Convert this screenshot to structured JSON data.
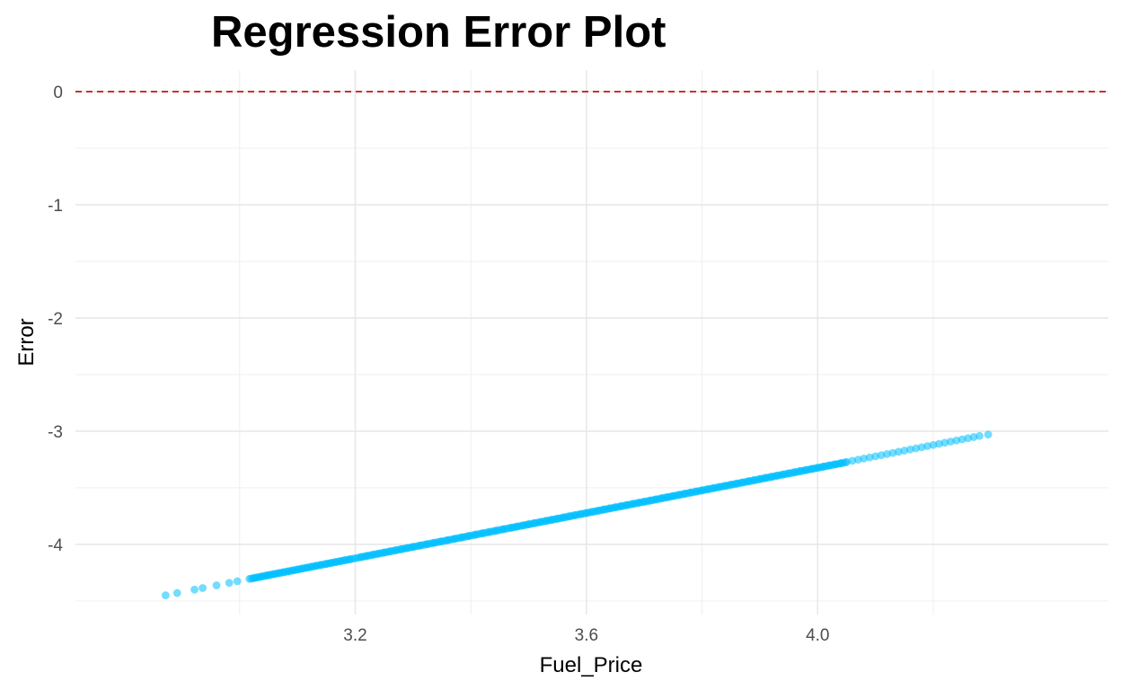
{
  "chart_data": {
    "type": "scatter",
    "title": "Regression Error Plot",
    "xlabel": "Fuel_Price",
    "ylabel": "Error",
    "xlim": [
      2.716,
      4.503
    ],
    "ylim": [
      -4.62,
      0.19
    ],
    "x_ticks": [
      3.2,
      3.6,
      4.0
    ],
    "x_tick_labels": [
      "3.2",
      "3.6",
      "4.0"
    ],
    "y_ticks": [
      0,
      -1,
      -2,
      -3,
      -4
    ],
    "y_tick_labels": [
      "0",
      "-1",
      "-2",
      "-3",
      "-4"
    ],
    "grid": true,
    "reference_line": {
      "y": 0,
      "style": "dashed",
      "color": "#cc2222"
    },
    "point_color": "#00bfff",
    "point_opacity": 0.55,
    "trend": {
      "x_start": 2.872,
      "y_start": -4.45,
      "x_end": 4.295,
      "y_end": -3.03
    },
    "x": [
      2.872,
      2.892,
      2.922,
      2.936,
      2.96,
      2.982,
      2.996,
      3.017,
      3.024,
      3.03,
      3.038,
      3.046,
      3.052,
      3.06,
      3.068,
      3.076,
      3.084,
      3.092,
      3.1,
      3.108,
      3.116,
      3.124,
      3.132,
      3.14,
      3.15,
      3.158,
      3.166,
      3.174,
      3.182,
      3.19,
      3.21,
      3.22,
      3.23,
      3.24,
      3.25,
      3.26,
      3.27,
      3.28,
      3.29,
      3.3,
      3.312,
      3.324,
      3.336,
      3.348,
      3.36,
      3.372,
      3.384,
      3.396,
      3.408,
      3.42,
      3.432,
      3.444,
      3.456,
      3.47,
      3.48,
      3.49,
      3.5,
      3.51,
      3.52,
      3.53,
      3.54,
      3.55,
      3.56,
      3.57,
      3.58,
      3.59,
      3.6,
      3.61,
      3.62,
      3.63,
      3.64,
      3.65,
      3.66,
      3.67,
      3.68,
      3.69,
      3.7,
      3.71,
      3.72,
      3.73,
      3.74,
      3.75,
      3.76,
      3.77,
      3.78,
      3.79,
      3.8,
      3.81,
      3.82,
      3.83,
      3.84,
      3.85,
      3.86,
      3.87,
      3.88,
      3.89,
      3.9,
      3.91,
      3.92,
      3.93,
      3.94,
      3.95,
      3.96,
      3.97,
      3.98,
      3.99,
      4.0,
      4.01,
      4.02,
      4.03,
      4.04,
      4.05,
      4.06,
      4.07,
      4.08,
      4.09,
      4.1,
      4.11,
      4.12,
      4.13,
      4.14,
      4.15,
      4.16,
      4.17,
      4.18,
      4.19,
      4.2,
      4.21,
      4.22,
      4.23,
      4.24,
      4.25,
      4.26,
      4.27,
      4.28,
      4.295
    ],
    "y": [
      -4.45,
      -4.43,
      -4.4,
      -4.386,
      -4.362,
      -4.34,
      -4.326,
      -4.305,
      -4.298,
      -4.292,
      -4.284,
      -4.276,
      -4.27,
      -4.262,
      -4.254,
      -4.246,
      -4.238,
      -4.23,
      -4.222,
      -4.214,
      -4.206,
      -4.198,
      -4.19,
      -4.182,
      -4.172,
      -4.164,
      -4.156,
      -4.148,
      -4.14,
      -4.132,
      -4.112,
      -4.102,
      -4.092,
      -4.082,
      -4.072,
      -4.062,
      -4.052,
      -4.042,
      -4.032,
      -4.022,
      -4.01,
      -3.998,
      -3.986,
      -3.974,
      -3.962,
      -3.95,
      -3.938,
      -3.926,
      -3.914,
      -3.902,
      -3.89,
      -3.878,
      -3.866,
      -3.852,
      -3.842,
      -3.832,
      -3.822,
      -3.812,
      -3.802,
      -3.792,
      -3.782,
      -3.772,
      -3.762,
      -3.752,
      -3.742,
      -3.732,
      -3.722,
      -3.712,
      -3.702,
      -3.692,
      -3.682,
      -3.672,
      -3.662,
      -3.652,
      -3.642,
      -3.632,
      -3.622,
      -3.612,
      -3.602,
      -3.592,
      -3.582,
      -3.572,
      -3.562,
      -3.552,
      -3.542,
      -3.532,
      -3.522,
      -3.512,
      -3.502,
      -3.492,
      -3.482,
      -3.472,
      -3.462,
      -3.452,
      -3.442,
      -3.432,
      -3.422,
      -3.412,
      -3.402,
      -3.392,
      -3.382,
      -3.372,
      -3.362,
      -3.352,
      -3.342,
      -3.332,
      -3.322,
      -3.312,
      -3.302,
      -3.292,
      -3.282,
      -3.272,
      -3.262,
      -3.252,
      -3.242,
      -3.232,
      -3.222,
      -3.212,
      -3.202,
      -3.192,
      -3.182,
      -3.172,
      -3.162,
      -3.152,
      -3.142,
      -3.132,
      -3.122,
      -3.112,
      -3.102,
      -3.092,
      -3.082,
      -3.072,
      -3.062,
      -3.052,
      -3.042,
      -3.03
    ]
  }
}
